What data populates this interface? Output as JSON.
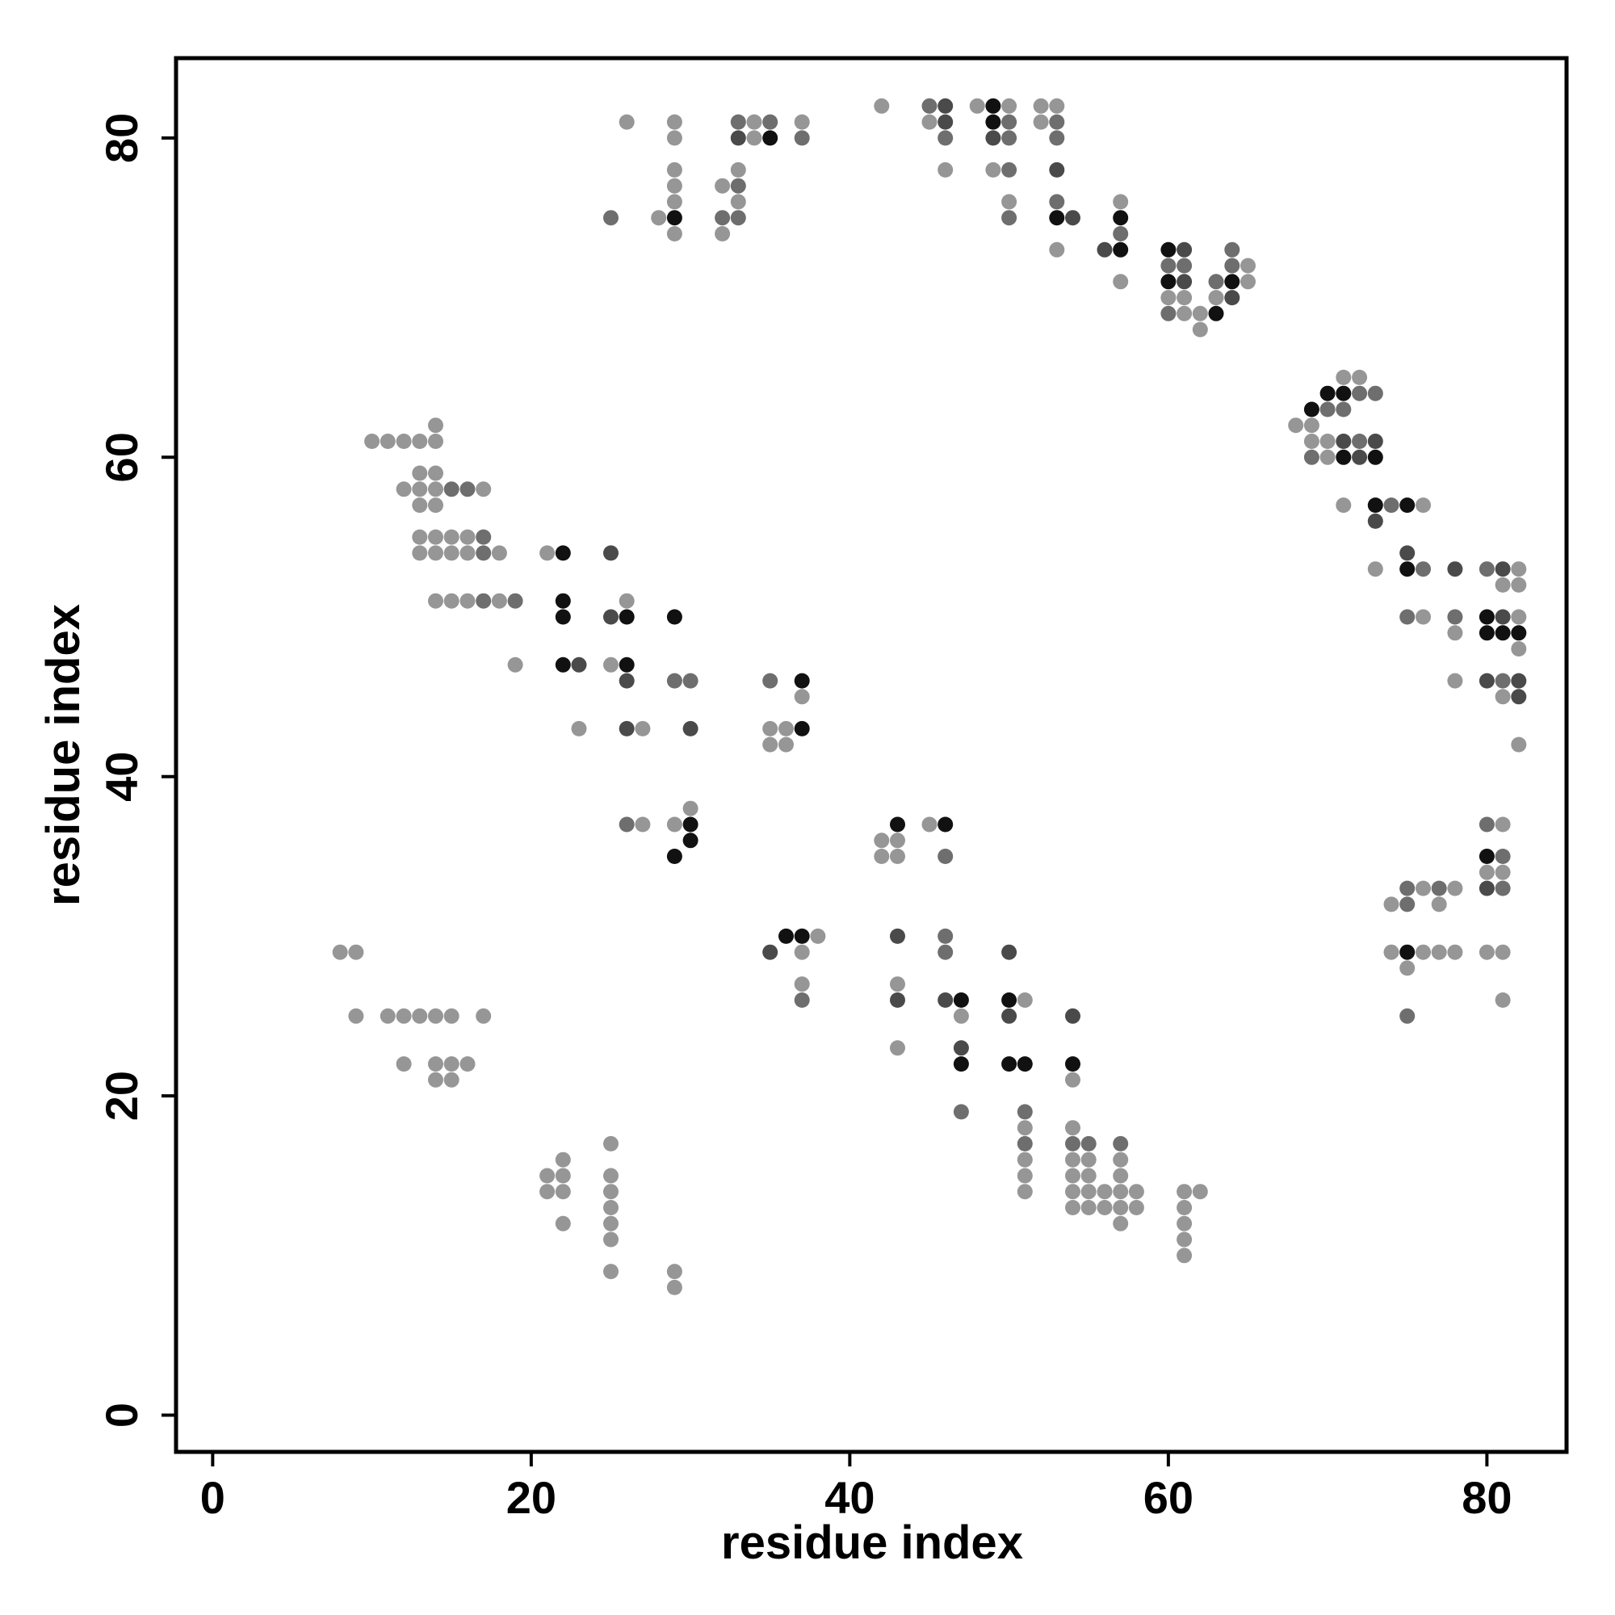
{
  "chart_data": {
    "type": "scatter",
    "title": "",
    "xlabel": "residue index",
    "ylabel": "residue index",
    "xlim": [
      -2.3,
      85
    ],
    "ylim": [
      -2.3,
      85
    ],
    "xticks": [
      0,
      20,
      40,
      60,
      80
    ],
    "yticks": [
      0,
      20,
      40,
      60,
      80
    ],
    "grid": false,
    "legend": "none",
    "shade_colors": {
      "1": "#969696",
      "2": "#6e6e6e",
      "3": "#4a4a4a",
      "4": "#111111"
    },
    "points": [
      [
        26,
        81,
        1
      ],
      [
        29,
        81,
        1
      ],
      [
        29,
        80,
        1
      ],
      [
        29,
        78,
        1
      ],
      [
        29,
        77,
        1
      ],
      [
        29,
        76,
        1
      ],
      [
        29,
        75,
        4
      ],
      [
        28,
        75,
        1
      ],
      [
        29,
        74,
        1
      ],
      [
        25,
        75,
        2
      ],
      [
        32,
        77,
        1
      ],
      [
        33,
        77,
        2
      ],
      [
        33,
        78,
        1
      ],
      [
        33,
        76,
        1
      ],
      [
        33,
        75,
        2
      ],
      [
        32,
        75,
        2
      ],
      [
        32,
        74,
        1
      ],
      [
        33,
        81,
        2
      ],
      [
        34,
        81,
        1
      ],
      [
        35,
        81,
        2
      ],
      [
        33,
        80,
        3
      ],
      [
        34,
        80,
        1
      ],
      [
        35,
        80,
        4
      ],
      [
        37,
        81,
        1
      ],
      [
        37,
        80,
        2
      ],
      [
        42,
        82,
        1
      ],
      [
        45,
        82,
        2
      ],
      [
        46,
        82,
        3
      ],
      [
        45,
        81,
        1
      ],
      [
        46,
        81,
        3
      ],
      [
        46,
        80,
        2
      ],
      [
        46,
        78,
        1
      ],
      [
        48,
        82,
        1
      ],
      [
        49,
        82,
        4
      ],
      [
        50,
        82,
        1
      ],
      [
        49,
        81,
        4
      ],
      [
        50,
        81,
        2
      ],
      [
        49,
        80,
        3
      ],
      [
        50,
        80,
        2
      ],
      [
        49,
        78,
        1
      ],
      [
        50,
        78,
        2
      ],
      [
        52,
        82,
        1
      ],
      [
        53,
        82,
        1
      ],
      [
        52,
        81,
        1
      ],
      [
        53,
        81,
        2
      ],
      [
        53,
        80,
        2
      ],
      [
        53,
        78,
        3
      ],
      [
        50,
        76,
        1
      ],
      [
        50,
        75,
        2
      ],
      [
        53,
        76,
        2
      ],
      [
        53,
        75,
        4
      ],
      [
        54,
        75,
        3
      ],
      [
        53,
        73,
        1
      ],
      [
        57,
        76,
        1
      ],
      [
        57,
        75,
        4
      ],
      [
        57,
        74,
        2
      ],
      [
        56,
        73,
        3
      ],
      [
        57,
        73,
        4
      ],
      [
        57,
        71,
        1
      ],
      [
        60,
        73,
        4
      ],
      [
        61,
        73,
        3
      ],
      [
        60,
        72,
        2
      ],
      [
        61,
        72,
        2
      ],
      [
        60,
        71,
        4
      ],
      [
        61,
        71,
        3
      ],
      [
        60,
        70,
        1
      ],
      [
        61,
        70,
        1
      ],
      [
        60,
        69,
        2
      ],
      [
        61,
        69,
        1
      ],
      [
        62,
        69,
        1
      ],
      [
        63,
        69,
        4
      ],
      [
        62,
        68,
        1
      ],
      [
        63,
        71,
        2
      ],
      [
        63,
        70,
        1
      ],
      [
        64,
        73,
        2
      ],
      [
        64,
        72,
        2
      ],
      [
        64,
        71,
        4
      ],
      [
        64,
        70,
        3
      ],
      [
        65,
        72,
        1
      ],
      [
        65,
        71,
        1
      ],
      [
        68,
        62,
        1
      ],
      [
        69,
        62,
        1
      ],
      [
        69,
        63,
        4
      ],
      [
        70,
        64,
        4
      ],
      [
        71,
        64,
        4
      ],
      [
        72,
        64,
        2
      ],
      [
        73,
        64,
        2
      ],
      [
        71,
        65,
        1
      ],
      [
        72,
        65,
        1
      ],
      [
        70,
        63,
        2
      ],
      [
        71,
        63,
        2
      ],
      [
        69,
        61,
        1
      ],
      [
        70,
        61,
        1
      ],
      [
        71,
        61,
        3
      ],
      [
        72,
        61,
        2
      ],
      [
        73,
        61,
        3
      ],
      [
        69,
        60,
        2
      ],
      [
        70,
        60,
        1
      ],
      [
        71,
        60,
        4
      ],
      [
        72,
        60,
        3
      ],
      [
        73,
        60,
        4
      ],
      [
        71,
        57,
        1
      ],
      [
        73,
        57,
        4
      ],
      [
        74,
        57,
        2
      ],
      [
        75,
        57,
        4
      ],
      [
        76,
        57,
        1
      ],
      [
        73,
        56,
        3
      ],
      [
        75,
        54,
        3
      ],
      [
        75,
        53,
        4
      ],
      [
        76,
        53,
        2
      ],
      [
        73,
        53,
        1
      ],
      [
        78,
        53,
        3
      ],
      [
        75,
        50,
        2
      ],
      [
        76,
        50,
        1
      ],
      [
        80,
        53,
        2
      ],
      [
        81,
        53,
        3
      ],
      [
        82,
        53,
        1
      ],
      [
        81,
        52,
        1
      ],
      [
        82,
        52,
        1
      ],
      [
        78,
        50,
        2
      ],
      [
        78,
        49,
        1
      ],
      [
        80,
        50,
        4
      ],
      [
        81,
        50,
        3
      ],
      [
        82,
        50,
        1
      ],
      [
        80,
        49,
        4
      ],
      [
        81,
        49,
        4
      ],
      [
        82,
        49,
        4
      ],
      [
        82,
        48,
        1
      ],
      [
        78,
        46,
        1
      ],
      [
        80,
        46,
        3
      ],
      [
        81,
        46,
        2
      ],
      [
        82,
        46,
        3
      ],
      [
        81,
        45,
        1
      ],
      [
        82,
        45,
        3
      ],
      [
        82,
        42,
        1
      ],
      [
        10,
        61,
        1
      ],
      [
        11,
        61,
        1
      ],
      [
        12,
        61,
        1
      ],
      [
        13,
        61,
        1
      ],
      [
        14,
        61,
        1
      ],
      [
        14,
        62,
        1
      ],
      [
        13,
        59,
        1
      ],
      [
        14,
        59,
        1
      ],
      [
        12,
        58,
        1
      ],
      [
        13,
        58,
        1
      ],
      [
        14,
        58,
        1
      ],
      [
        15,
        58,
        2
      ],
      [
        16,
        58,
        2
      ],
      [
        17,
        58,
        1
      ],
      [
        13,
        57,
        1
      ],
      [
        14,
        57,
        1
      ],
      [
        13,
        55,
        1
      ],
      [
        14,
        55,
        1
      ],
      [
        15,
        55,
        1
      ],
      [
        16,
        55,
        1
      ],
      [
        17,
        55,
        2
      ],
      [
        13,
        54,
        1
      ],
      [
        14,
        54,
        1
      ],
      [
        15,
        54,
        1
      ],
      [
        16,
        54,
        1
      ],
      [
        17,
        54,
        2
      ],
      [
        18,
        54,
        1
      ],
      [
        14,
        51,
        1
      ],
      [
        15,
        51,
        1
      ],
      [
        16,
        51,
        1
      ],
      [
        17,
        51,
        2
      ],
      [
        18,
        51,
        1
      ],
      [
        19,
        51,
        2
      ],
      [
        19,
        47,
        1
      ],
      [
        21,
        54,
        1
      ],
      [
        22,
        54,
        4
      ],
      [
        25,
        54,
        3
      ],
      [
        22,
        51,
        4
      ],
      [
        26,
        51,
        1
      ],
      [
        22,
        50,
        4
      ],
      [
        25,
        50,
        3
      ],
      [
        26,
        50,
        4
      ],
      [
        29,
        50,
        4
      ],
      [
        22,
        47,
        4
      ],
      [
        23,
        47,
        3
      ],
      [
        25,
        47,
        1
      ],
      [
        26,
        47,
        4
      ],
      [
        26,
        46,
        3
      ],
      [
        29,
        46,
        2
      ],
      [
        30,
        46,
        2
      ],
      [
        23,
        43,
        1
      ],
      [
        26,
        43,
        3
      ],
      [
        27,
        43,
        1
      ],
      [
        30,
        43,
        3
      ],
      [
        35,
        46,
        2
      ],
      [
        37,
        46,
        4
      ],
      [
        37,
        45,
        1
      ],
      [
        35,
        43,
        1
      ],
      [
        36,
        43,
        1
      ],
      [
        37,
        43,
        4
      ],
      [
        35,
        42,
        1
      ],
      [
        36,
        42,
        1
      ],
      [
        26,
        37,
        2
      ],
      [
        27,
        37,
        1
      ],
      [
        29,
        37,
        1
      ],
      [
        30,
        37,
        4
      ],
      [
        30,
        38,
        1
      ],
      [
        29,
        35,
        4
      ],
      [
        30,
        36,
        4
      ],
      [
        42,
        36,
        1
      ],
      [
        43,
        36,
        1
      ],
      [
        42,
        35,
        1
      ],
      [
        43,
        35,
        1
      ],
      [
        43,
        37,
        4
      ],
      [
        45,
        37,
        1
      ],
      [
        46,
        37,
        4
      ],
      [
        46,
        35,
        2
      ],
      [
        35,
        29,
        3
      ],
      [
        36,
        30,
        4
      ],
      [
        37,
        30,
        4
      ],
      [
        38,
        30,
        1
      ],
      [
        37,
        29,
        1
      ],
      [
        37,
        27,
        1
      ],
      [
        37,
        26,
        2
      ],
      [
        43,
        30,
        3
      ],
      [
        43,
        27,
        1
      ],
      [
        43,
        26,
        3
      ],
      [
        46,
        30,
        2
      ],
      [
        46,
        29,
        2
      ],
      [
        46,
        26,
        3
      ],
      [
        47,
        26,
        4
      ],
      [
        47,
        25,
        1
      ],
      [
        43,
        23,
        1
      ],
      [
        47,
        23,
        3
      ],
      [
        47,
        22,
        4
      ],
      [
        47,
        19,
        2
      ],
      [
        50,
        29,
        3
      ],
      [
        50,
        26,
        4
      ],
      [
        51,
        26,
        1
      ],
      [
        50,
        25,
        3
      ],
      [
        50,
        22,
        4
      ],
      [
        51,
        22,
        4
      ],
      [
        54,
        25,
        3
      ],
      [
        54,
        22,
        4
      ],
      [
        54,
        21,
        1
      ],
      [
        8,
        29,
        1
      ],
      [
        9,
        29,
        1
      ],
      [
        9,
        25,
        1
      ],
      [
        11,
        25,
        1
      ],
      [
        12,
        25,
        1
      ],
      [
        13,
        25,
        1
      ],
      [
        14,
        25,
        1
      ],
      [
        15,
        25,
        1
      ],
      [
        17,
        25,
        1
      ],
      [
        12,
        22,
        1
      ],
      [
        14,
        22,
        1
      ],
      [
        15,
        22,
        1
      ],
      [
        16,
        22,
        1
      ],
      [
        14,
        21,
        1
      ],
      [
        15,
        21,
        1
      ],
      [
        21,
        15,
        1
      ],
      [
        22,
        15,
        1
      ],
      [
        22,
        16,
        1
      ],
      [
        21,
        14,
        1
      ],
      [
        22,
        14,
        1
      ],
      [
        22,
        12,
        1
      ],
      [
        25,
        17,
        1
      ],
      [
        25,
        15,
        1
      ],
      [
        25,
        14,
        1
      ],
      [
        25,
        13,
        1
      ],
      [
        25,
        12,
        1
      ],
      [
        25,
        11,
        1
      ],
      [
        25,
        9,
        1
      ],
      [
        29,
        9,
        1
      ],
      [
        29,
        8,
        1
      ],
      [
        51,
        19,
        2
      ],
      [
        51,
        18,
        1
      ],
      [
        51,
        17,
        2
      ],
      [
        51,
        16,
        1
      ],
      [
        51,
        15,
        1
      ],
      [
        51,
        14,
        1
      ],
      [
        54,
        18,
        1
      ],
      [
        54,
        17,
        2
      ],
      [
        55,
        17,
        2
      ],
      [
        54,
        16,
        1
      ],
      [
        55,
        16,
        1
      ],
      [
        54,
        15,
        1
      ],
      [
        55,
        15,
        1
      ],
      [
        54,
        14,
        1
      ],
      [
        55,
        14,
        1
      ],
      [
        54,
        13,
        1
      ],
      [
        55,
        13,
        1
      ],
      [
        56,
        14,
        1
      ],
      [
        56,
        13,
        1
      ],
      [
        57,
        17,
        2
      ],
      [
        57,
        16,
        1
      ],
      [
        57,
        15,
        1
      ],
      [
        57,
        14,
        1
      ],
      [
        57,
        13,
        1
      ],
      [
        57,
        12,
        1
      ],
      [
        58,
        14,
        1
      ],
      [
        58,
        13,
        1
      ],
      [
        61,
        14,
        1
      ],
      [
        62,
        14,
        1
      ],
      [
        61,
        13,
        1
      ],
      [
        61,
        12,
        1
      ],
      [
        61,
        11,
        1
      ],
      [
        61,
        10,
        1
      ],
      [
        74,
        32,
        1
      ],
      [
        75,
        32,
        2
      ],
      [
        75,
        33,
        2
      ],
      [
        76,
        33,
        1
      ],
      [
        77,
        33,
        2
      ],
      [
        78,
        33,
        1
      ],
      [
        77,
        32,
        1
      ],
      [
        74,
        29,
        1
      ],
      [
        75,
        29,
        4
      ],
      [
        76,
        29,
        1
      ],
      [
        77,
        29,
        1
      ],
      [
        78,
        29,
        1
      ],
      [
        75,
        28,
        1
      ],
      [
        75,
        25,
        2
      ],
      [
        80,
        37,
        2
      ],
      [
        81,
        37,
        1
      ],
      [
        80,
        35,
        4
      ],
      [
        81,
        35,
        2
      ],
      [
        80,
        34,
        1
      ],
      [
        81,
        34,
        1
      ],
      [
        80,
        33,
        3
      ],
      [
        81,
        33,
        2
      ],
      [
        80,
        29,
        1
      ],
      [
        81,
        29,
        1
      ],
      [
        81,
        26,
        1
      ]
    ]
  }
}
